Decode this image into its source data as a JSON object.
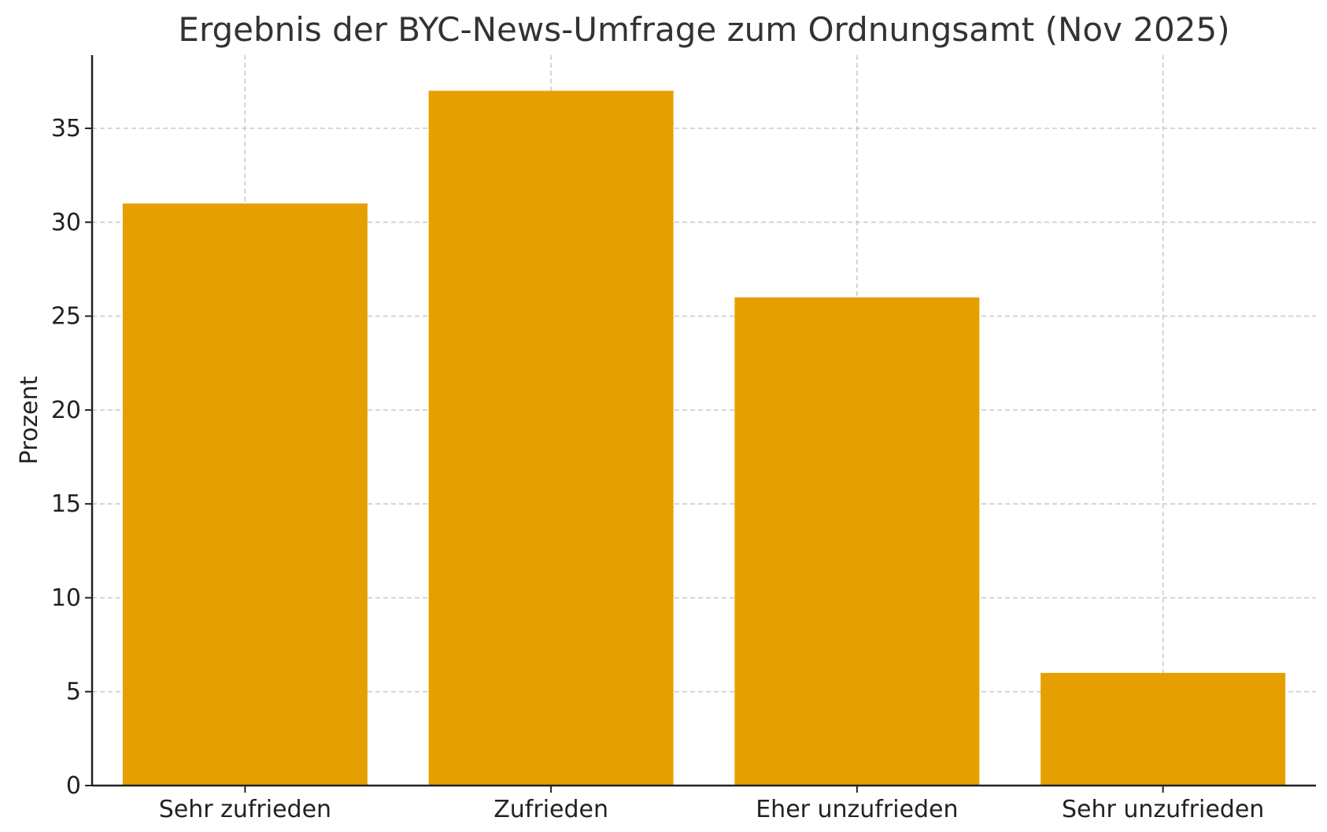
{
  "chart_data": {
    "type": "bar",
    "title": "Ergebnis der BYC-News-Umfrage zum Ordnungsamt (Nov 2025)",
    "xlabel": "",
    "ylabel": "Prozent",
    "categories": [
      "Sehr zufrieden",
      "Zufrieden",
      "Eher unzufrieden",
      "Sehr unzufrieden"
    ],
    "values": [
      31,
      37,
      26,
      6
    ],
    "ylim": [
      0,
      38.9
    ],
    "yticks": [
      0,
      5,
      10,
      15,
      20,
      25,
      30,
      35
    ],
    "grid": true,
    "bar_color": "#E69F00"
  }
}
